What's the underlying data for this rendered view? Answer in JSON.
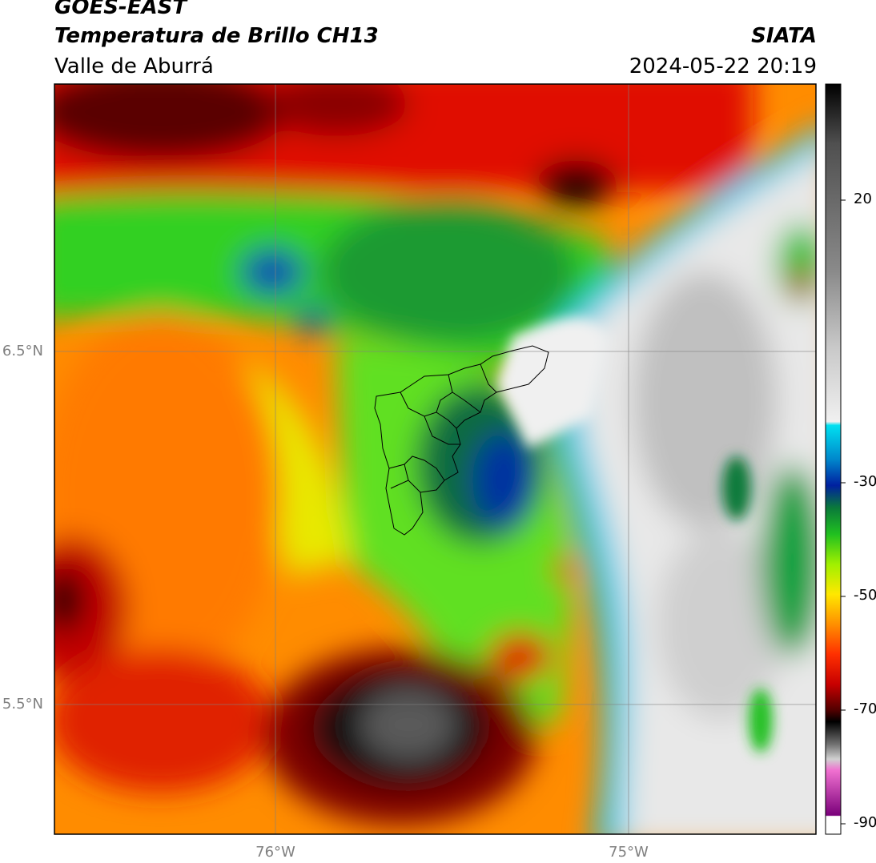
{
  "header": {
    "satellite": "GOES-EAST",
    "product": "Temperatura de Brillo CH13",
    "region": "Valle de Aburrá",
    "organization": "SIATA",
    "timestamp": "2024-05-22 20:19"
  },
  "map": {
    "lat_labels": [
      "6.5°N",
      "5.5°N"
    ],
    "lon_labels": [
      "76°W",
      "75°W"
    ]
  },
  "colorbar": {
    "ticks": [
      "20",
      "-30",
      "-50",
      "-70",
      "-90"
    ],
    "colors": [
      "#000000",
      "#3a3a3a",
      "#6e6e6e",
      "#a0a0a0",
      "#cfcfcf",
      "#f2f2f2",
      "#00e5f0",
      "#0090d0",
      "#0033a0",
      "#0a7a3a",
      "#1fbf1f",
      "#7fe000",
      "#f6e600",
      "#ffb000",
      "#ff6000",
      "#e80000",
      "#7a0000",
      "#000000",
      "#8c8c8c",
      "#e080c8",
      "#8a007a",
      "#ffffff"
    ]
  }
}
